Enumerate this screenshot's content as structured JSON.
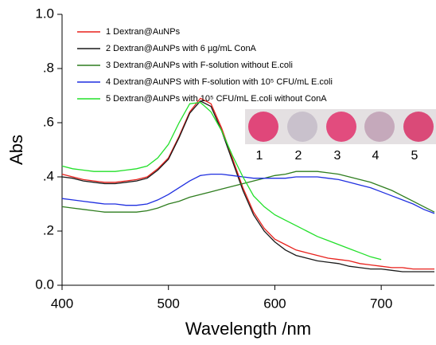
{
  "chart_data": {
    "type": "line",
    "x_label": "Abs",
    "xaxis_label": "Wavelength /nm",
    "x": [
      400,
      410,
      420,
      430,
      440,
      450,
      460,
      470,
      480,
      490,
      500,
      510,
      520,
      530,
      540,
      550,
      560,
      570,
      580,
      590,
      600,
      610,
      620,
      630,
      640,
      650,
      660,
      670,
      680,
      690,
      700,
      710,
      720,
      730,
      740,
      750
    ],
    "series": [
      {
        "name": "1 Dextran@AuNPs",
        "color": "#e8211c",
        "values": [
          0.41,
          0.4,
          0.39,
          0.385,
          0.38,
          0.38,
          0.385,
          0.39,
          0.4,
          0.43,
          0.47,
          0.55,
          0.64,
          0.69,
          0.67,
          0.58,
          0.47,
          0.36,
          0.27,
          0.21,
          0.17,
          0.15,
          0.13,
          0.12,
          0.11,
          0.1,
          0.095,
          0.09,
          0.08,
          0.075,
          0.07,
          0.065,
          0.065,
          0.06,
          0.06,
          0.06
        ]
      },
      {
        "name": "2 Dextran@AuNPs with 6 µg/mL ConA",
        "color": "#1a1a1a",
        "values": [
          0.4,
          0.395,
          0.385,
          0.38,
          0.375,
          0.375,
          0.38,
          0.385,
          0.395,
          0.425,
          0.465,
          0.545,
          0.635,
          0.68,
          0.66,
          0.57,
          0.46,
          0.35,
          0.26,
          0.2,
          0.16,
          0.13,
          0.11,
          0.1,
          0.09,
          0.085,
          0.08,
          0.07,
          0.065,
          0.06,
          0.06,
          0.055,
          0.05,
          0.05,
          0.05,
          0.05
        ]
      },
      {
        "name": "3 Dextran@AuNPs with F-solution without E.coli",
        "color": "#2e7d1e",
        "values": [
          0.29,
          0.285,
          0.28,
          0.275,
          0.27,
          0.27,
          0.27,
          0.27,
          0.275,
          0.285,
          0.3,
          0.31,
          0.325,
          0.335,
          0.345,
          0.355,
          0.365,
          0.375,
          0.385,
          0.395,
          0.405,
          0.41,
          0.42,
          0.42,
          0.42,
          0.415,
          0.41,
          0.4,
          0.39,
          0.38,
          0.365,
          0.35,
          0.33,
          0.31,
          0.29,
          0.27
        ]
      },
      {
        "name": "4 Dextran@AuNPS with F-solution with 10⁵ CFU/mL E.coli",
        "color": "#1f2fe0",
        "values": [
          0.32,
          0.315,
          0.31,
          0.305,
          0.3,
          0.3,
          0.295,
          0.295,
          0.3,
          0.315,
          0.335,
          0.36,
          0.385,
          0.405,
          0.41,
          0.41,
          0.405,
          0.4,
          0.395,
          0.395,
          0.395,
          0.395,
          0.4,
          0.4,
          0.4,
          0.395,
          0.39,
          0.38,
          0.37,
          0.36,
          0.345,
          0.33,
          0.315,
          0.3,
          0.28,
          0.265
        ]
      },
      {
        "name": "5 Dextran@AuNPs with 10⁵ CFU/mL E.coli without ConA",
        "color": "#22e02a",
        "values": [
          0.44,
          0.43,
          0.425,
          0.42,
          0.42,
          0.42,
          0.425,
          0.43,
          0.44,
          0.47,
          0.52,
          0.6,
          0.67,
          0.675,
          0.64,
          0.57,
          0.48,
          0.4,
          0.33,
          0.29,
          0.26,
          0.24,
          0.22,
          0.2,
          0.18,
          0.165,
          0.15,
          0.135,
          0.12,
          0.105,
          0.095,
          null,
          null,
          null,
          null,
          null
        ]
      }
    ],
    "xlim": [
      400,
      750
    ],
    "xticks": [
      400,
      500,
      600,
      700
    ],
    "ylim": [
      0,
      1.0
    ],
    "yticks": [
      {
        "value": 0,
        "label": "0.0"
      },
      {
        "value": 0.2,
        "label": ".2"
      },
      {
        "value": 0.4,
        "label": ".4"
      },
      {
        "value": 0.6,
        "label": ".6"
      },
      {
        "value": 0.8,
        "label": ".8"
      },
      {
        "value": 1.0,
        "label": "1.0"
      }
    ],
    "inset_labels": [
      "1",
      "2",
      "3",
      "4",
      "5"
    ]
  }
}
